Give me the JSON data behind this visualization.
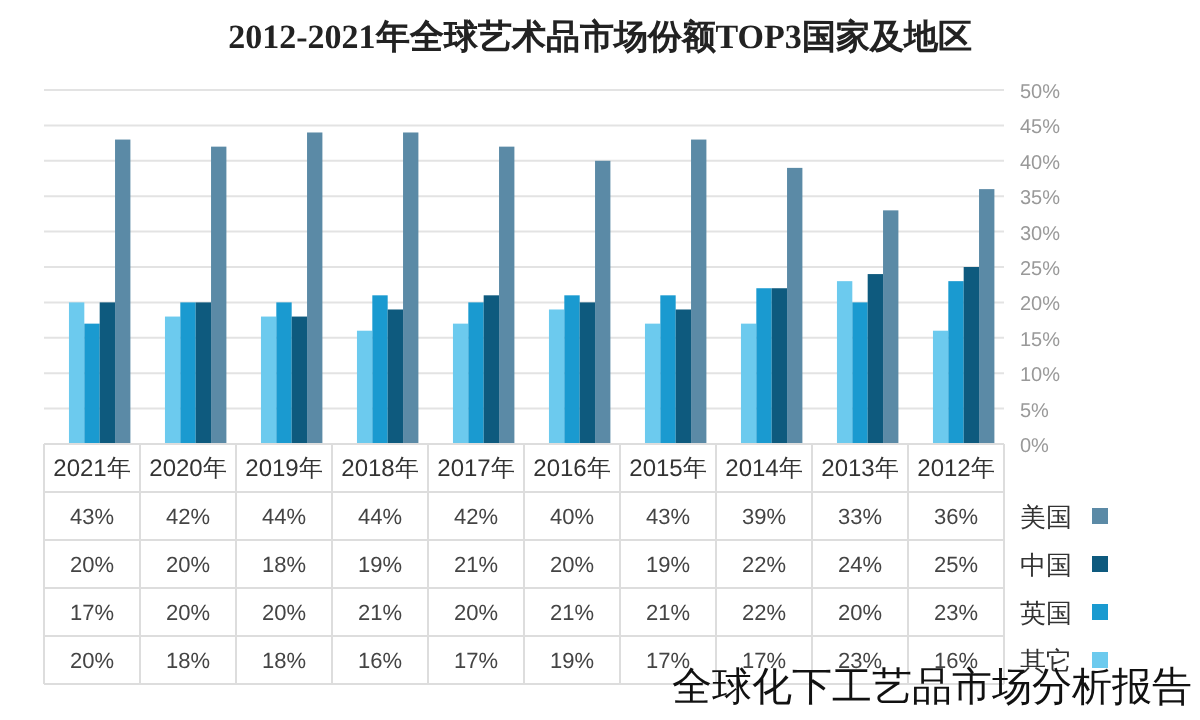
{
  "chart_data": {
    "type": "bar",
    "title": "2012-2021年全球艺术品市场份额TOP3国家及地区",
    "categories": [
      "2021年",
      "2020年",
      "2019年",
      "2018年",
      "2017年",
      "2016年",
      "2015年",
      "2014年",
      "2013年",
      "2012年"
    ],
    "series": [
      {
        "name": "其它",
        "color": "#6ccaee",
        "values": [
          20,
          18,
          18,
          16,
          17,
          19,
          17,
          17,
          23,
          16
        ],
        "value_labels": [
          "20%",
          "18%",
          "18%",
          "16%",
          "17%",
          "19%",
          "17%",
          "17%",
          "23%",
          "16%"
        ]
      },
      {
        "name": "英国",
        "color": "#1a9ad0",
        "values": [
          17,
          20,
          20,
          21,
          20,
          21,
          21,
          22,
          20,
          23
        ],
        "value_labels": [
          "17%",
          "20%",
          "20%",
          "21%",
          "20%",
          "21%",
          "21%",
          "22%",
          "20%",
          "23%"
        ]
      },
      {
        "name": "中国",
        "color": "#0e5a7e",
        "values": [
          20,
          20,
          18,
          19,
          21,
          20,
          19,
          22,
          24,
          25
        ],
        "value_labels": [
          "20%",
          "20%",
          "18%",
          "19%",
          "21%",
          "20%",
          "19%",
          "22%",
          "24%",
          "25%"
        ]
      },
      {
        "name": "美国",
        "color": "#5b8aa6",
        "values": [
          43,
          42,
          44,
          44,
          42,
          40,
          43,
          39,
          33,
          36
        ],
        "value_labels": [
          "43%",
          "42%",
          "44%",
          "44%",
          "42%",
          "40%",
          "43%",
          "39%",
          "33%",
          "36%"
        ]
      }
    ],
    "ylim": [
      0,
      50
    ],
    "yticks": [
      {
        "value": 0,
        "label": "0%"
      },
      {
        "value": 5,
        "label": "5%"
      },
      {
        "value": 10,
        "label": "10%"
      },
      {
        "value": 15,
        "label": "15%"
      },
      {
        "value": 20,
        "label": "20%"
      },
      {
        "value": 25,
        "label": "25%"
      },
      {
        "value": 30,
        "label": "30%"
      },
      {
        "value": 35,
        "label": "35%"
      },
      {
        "value": 40,
        "label": "40%"
      },
      {
        "value": 45,
        "label": "45%"
      },
      {
        "value": 50,
        "label": "50%"
      }
    ],
    "grid": "y",
    "legend": "bottom right",
    "annotations": [
      "全球化下工艺品市场分析报告"
    ]
  }
}
